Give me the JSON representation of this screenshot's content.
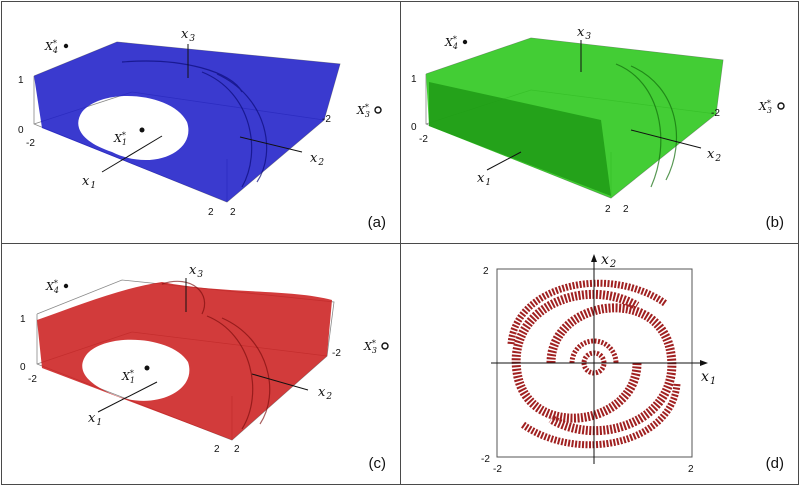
{
  "panels": {
    "a": {
      "label": "(a)",
      "color": "#1f1fc8"
    },
    "b": {
      "label": "(b)",
      "color": "#2fc81f"
    },
    "c": {
      "label": "(c)",
      "color": "#cc2020"
    },
    "d": {
      "label": "(d)",
      "color": "#a02020"
    }
  },
  "axes3d": {
    "x1": "x",
    "x1_sub": "1",
    "x2": "x",
    "x2_sub": "2",
    "x3": "x",
    "x3_sub": "3",
    "tick_top": "1",
    "tick_zero": "0",
    "tick_neg2_left": "-2",
    "tick_neg2_right": "-2",
    "tick_2a": "2",
    "tick_2b": "2"
  },
  "points": {
    "X4": "X",
    "X4_sup": "*",
    "X4_sub": "4",
    "X3": "X",
    "X3_sup": "*",
    "X3_sub": "3",
    "X1": "X",
    "X1_sup": "*",
    "X1_sub": "1"
  },
  "axes2d": {
    "x1": "x",
    "x1_sub": "1",
    "x2": "x",
    "x2_sub": "2",
    "tick_top": "2",
    "tick_bottom": "-2",
    "tick_left": "-2",
    "tick_right": "2"
  }
}
